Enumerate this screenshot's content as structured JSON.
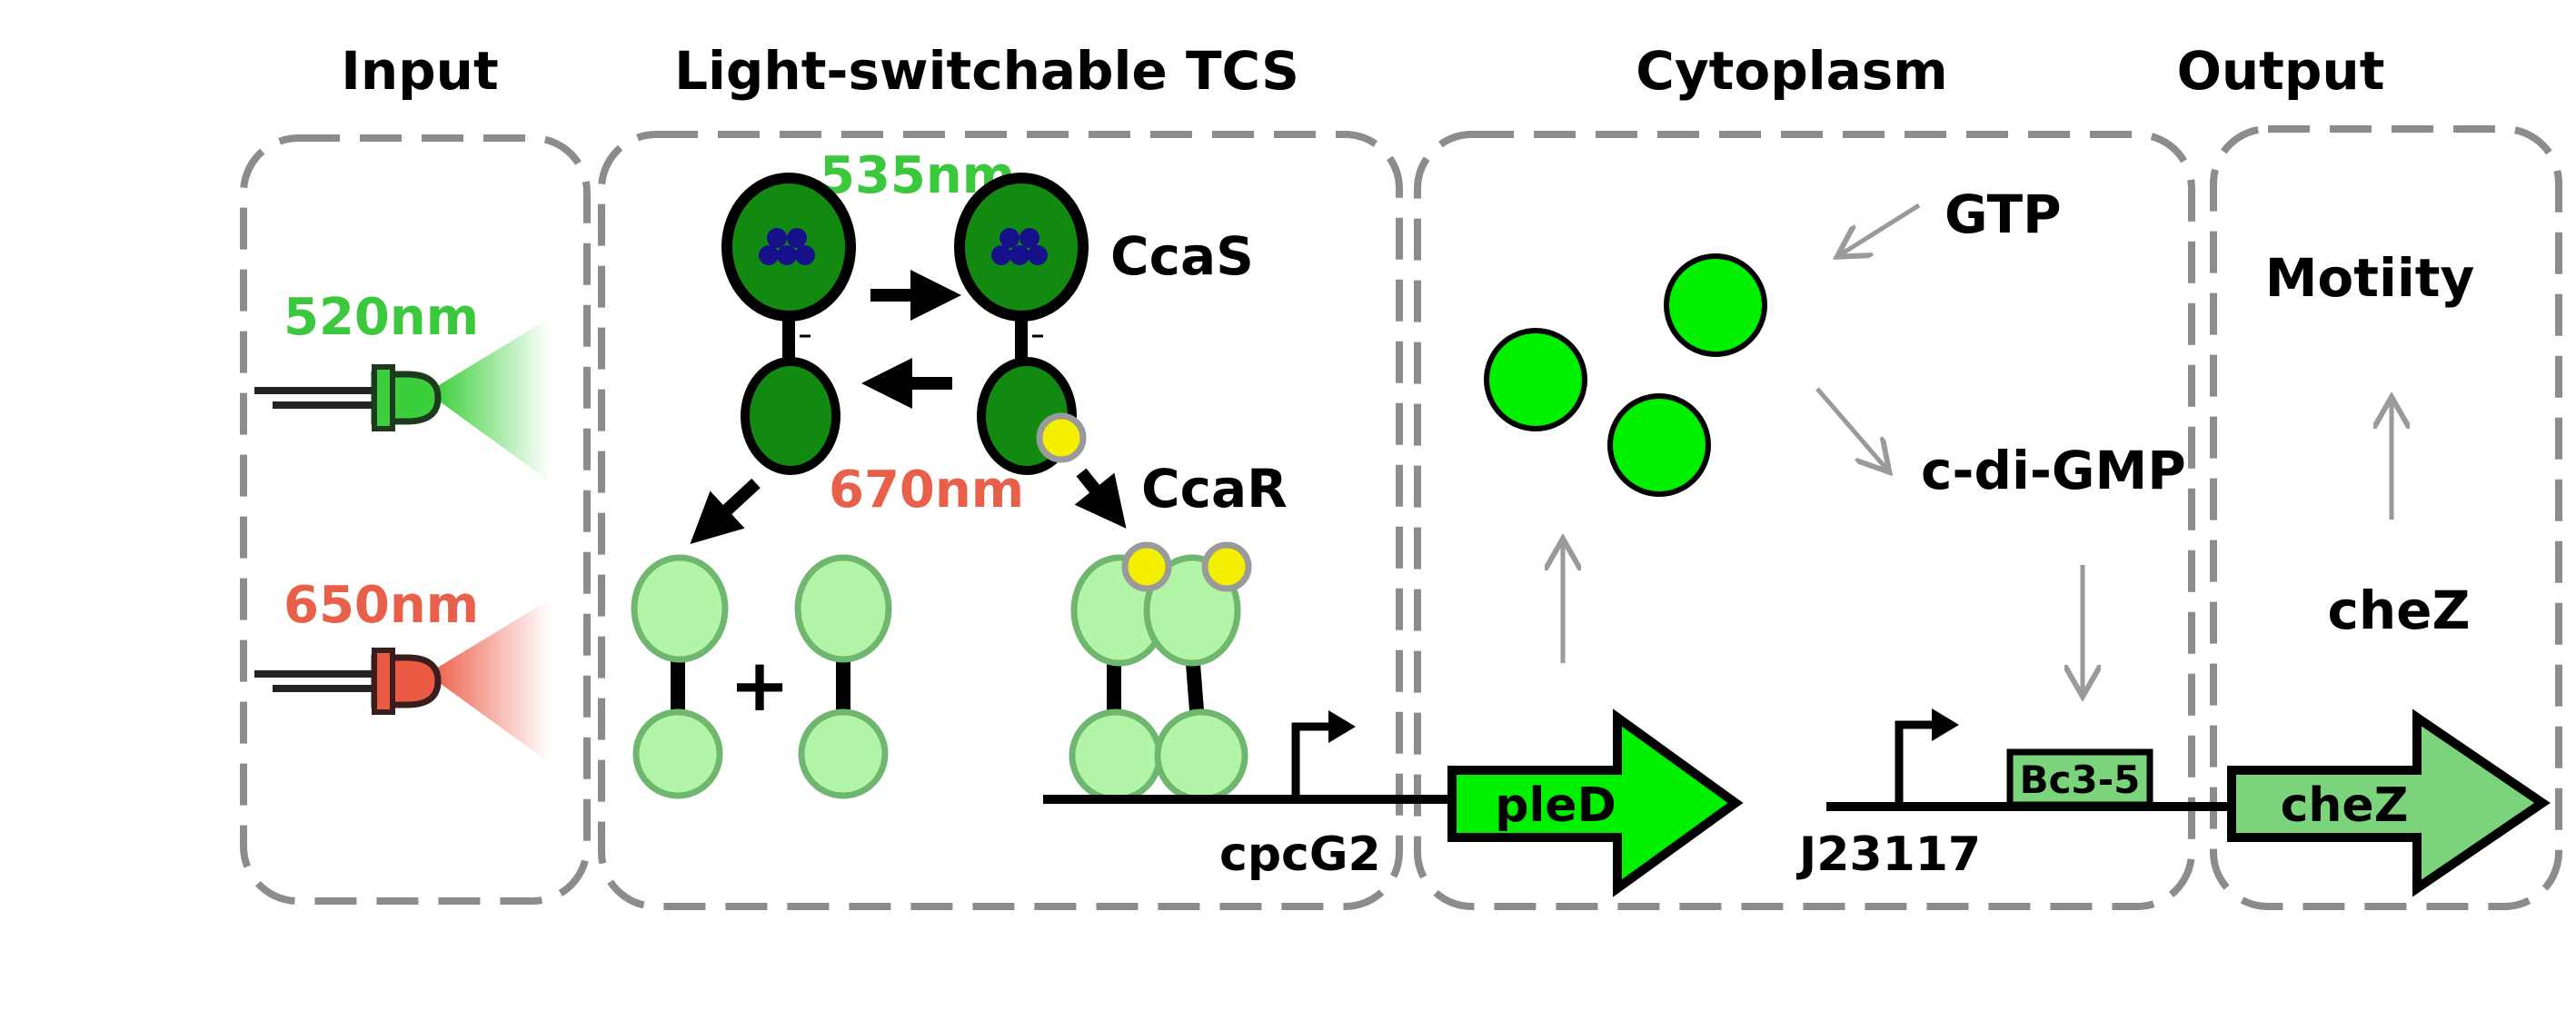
{
  "panels": {
    "input": "Input",
    "tcs": "Light-switchable TCS",
    "cytoplasm": "Cytoplasm",
    "output": "Output"
  },
  "wavelengths": {
    "w520": "520nm",
    "w650": "650nm",
    "w535": "535nm",
    "w670": "670nm"
  },
  "proteins": {
    "ccas": "CcaS",
    "ccar": "CcaR"
  },
  "promoters": {
    "cpcg2": "cpcG2",
    "j23117": "J23117"
  },
  "genes": {
    "pled": "pleD",
    "rbs": "Bc3-5",
    "chez": "cheZ"
  },
  "metabolites": {
    "gtp": "GTP",
    "cdigmp": "c-di-GMP"
  },
  "output": {
    "motility": "Motiity",
    "chez_label": "cheZ"
  },
  "plus_sign": "+",
  "colors": {
    "panel_border": "#8c8c8c",
    "green_text": "#3cc83c",
    "red_text": "#e8604a",
    "dark_green": "#128a12",
    "light_green": "#b2f5a8",
    "bright_green": "#00f000",
    "chez_green": "#7bd47b",
    "yellow": "#f4f000",
    "navy": "#16108a"
  }
}
